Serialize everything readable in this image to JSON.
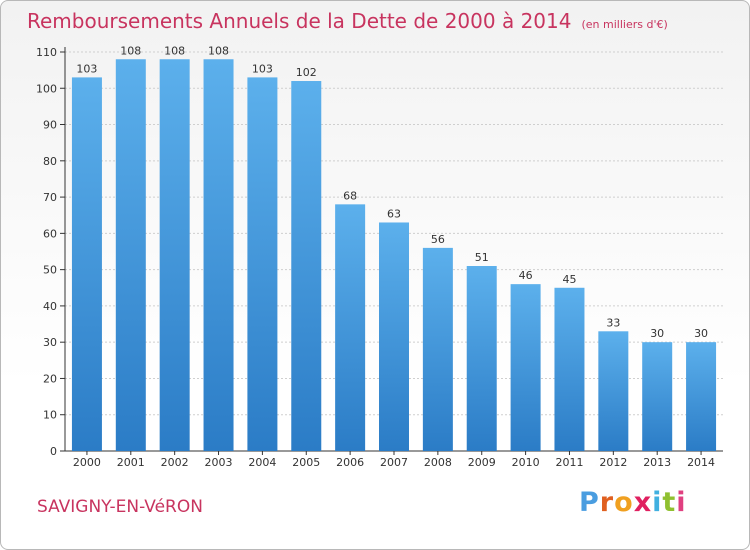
{
  "chart_data": {
    "type": "bar",
    "title": "Remboursements Annuels de la Dette de 2000 à 2014",
    "unit": "(en milliers d'€)",
    "categories": [
      "2000",
      "2001",
      "2002",
      "2003",
      "2004",
      "2005",
      "2006",
      "2007",
      "2008",
      "2009",
      "2010",
      "2011",
      "2012",
      "2013",
      "2014"
    ],
    "values": [
      103,
      108,
      108,
      108,
      103,
      102,
      68,
      63,
      56,
      51,
      46,
      45,
      33,
      30,
      30
    ],
    "ylim": [
      0,
      110
    ],
    "yticks": [
      0,
      10,
      20,
      30,
      40,
      50,
      60,
      70,
      80,
      90,
      100,
      110
    ],
    "grid": true,
    "bar_color": "#3a8fd8",
    "bar_color_light": "#5aaeea"
  },
  "commune": "SAVIGNY-EN-VéRON",
  "brand": {
    "letters": [
      "P",
      "r",
      "o",
      "x",
      "i",
      "t",
      "i"
    ],
    "colors": [
      "#4a9de0",
      "#e06020",
      "#f0a020",
      "#e02060",
      "#40b0e0",
      "#90c030",
      "#e04080"
    ]
  },
  "colors": {
    "title": "#c8345f",
    "frame": "#b8b8b8"
  }
}
